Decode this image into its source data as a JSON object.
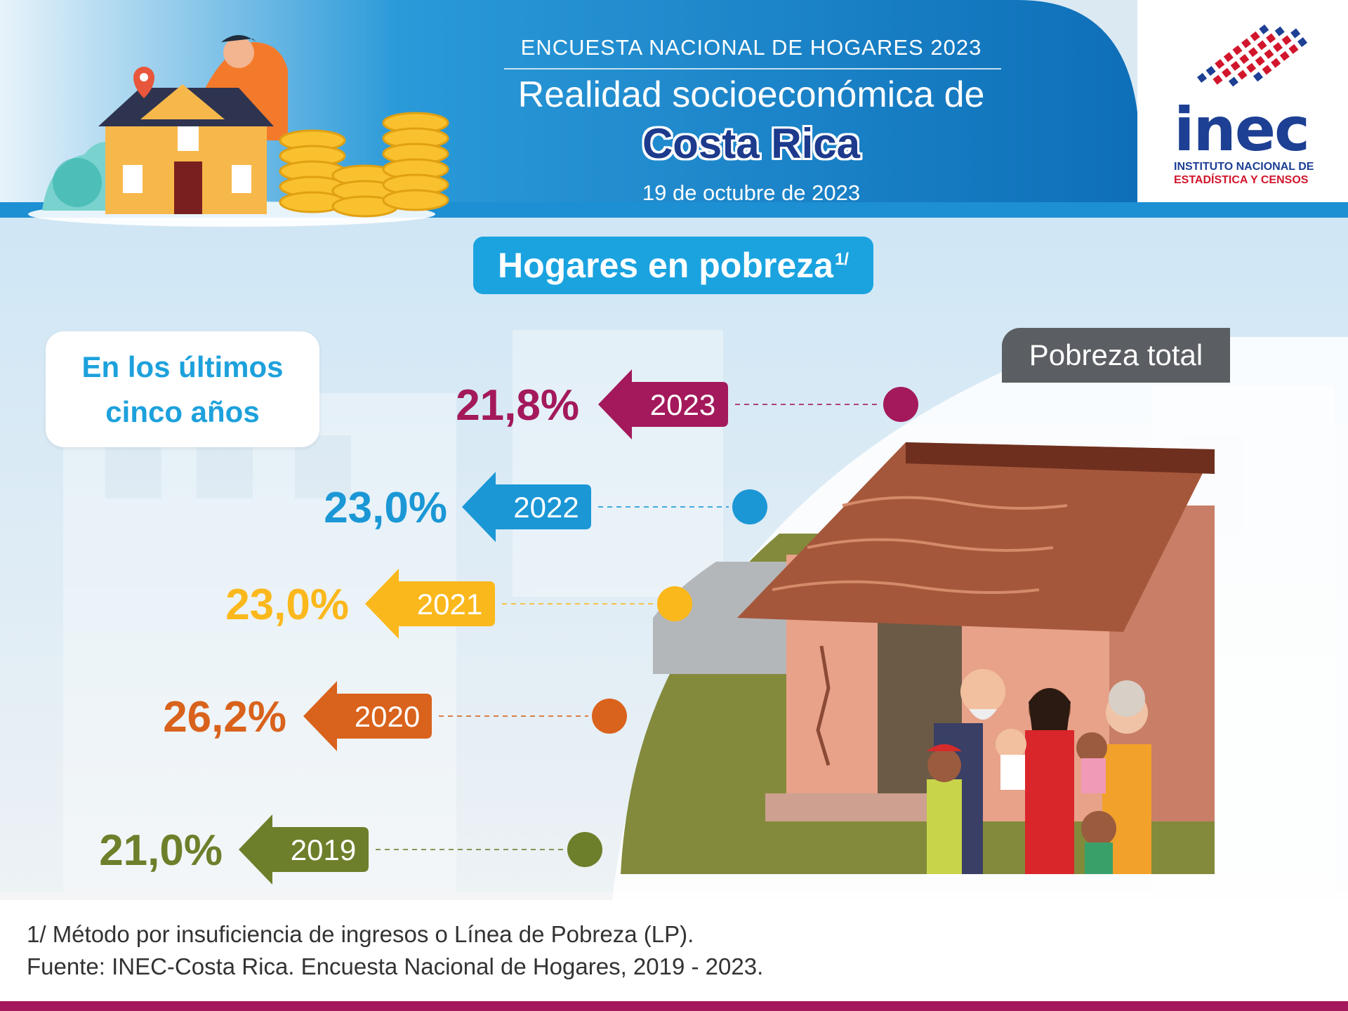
{
  "header": {
    "survey": "ENCUESTA NACIONAL DE HOGARES 2023",
    "title": "Realidad socioeconómica de",
    "country": "Costa Rica",
    "date": "19 de octubre de 2023"
  },
  "logo": {
    "word": "inec",
    "line1": "INSTITUTO NACIONAL DE",
    "line2": "ESTADÍSTICA Y CENSOS"
  },
  "section": {
    "title": "Hogares en pobreza",
    "title_note": "1/"
  },
  "period_card": {
    "line1": "En los últimos",
    "line2": "cinco años"
  },
  "chart_data": {
    "type": "timeline",
    "legend": "Pobreza total",
    "unit": "%",
    "points": [
      {
        "year": "2023",
        "value": 21.8,
        "label": "21,8%",
        "color": "#a3195b"
      },
      {
        "year": "2022",
        "value": 23.0,
        "label": "23,0%",
        "color": "#1b97d6"
      },
      {
        "year": "2021",
        "value": 23.0,
        "label": "23,0%",
        "color": "#fbb81c"
      },
      {
        "year": "2020",
        "value": 26.2,
        "label": "26,2%",
        "color": "#d9621c"
      },
      {
        "year": "2019",
        "value": 21.0,
        "label": "21,0%",
        "color": "#6e7f2b"
      }
    ]
  },
  "footnotes": {
    "note": "1/ Método por insuficiencia de ingresos o Línea de Pobreza (LP).",
    "source": "Fuente: INEC-Costa Rica. Encuesta Nacional de Hogares, 2019 - 2023."
  }
}
